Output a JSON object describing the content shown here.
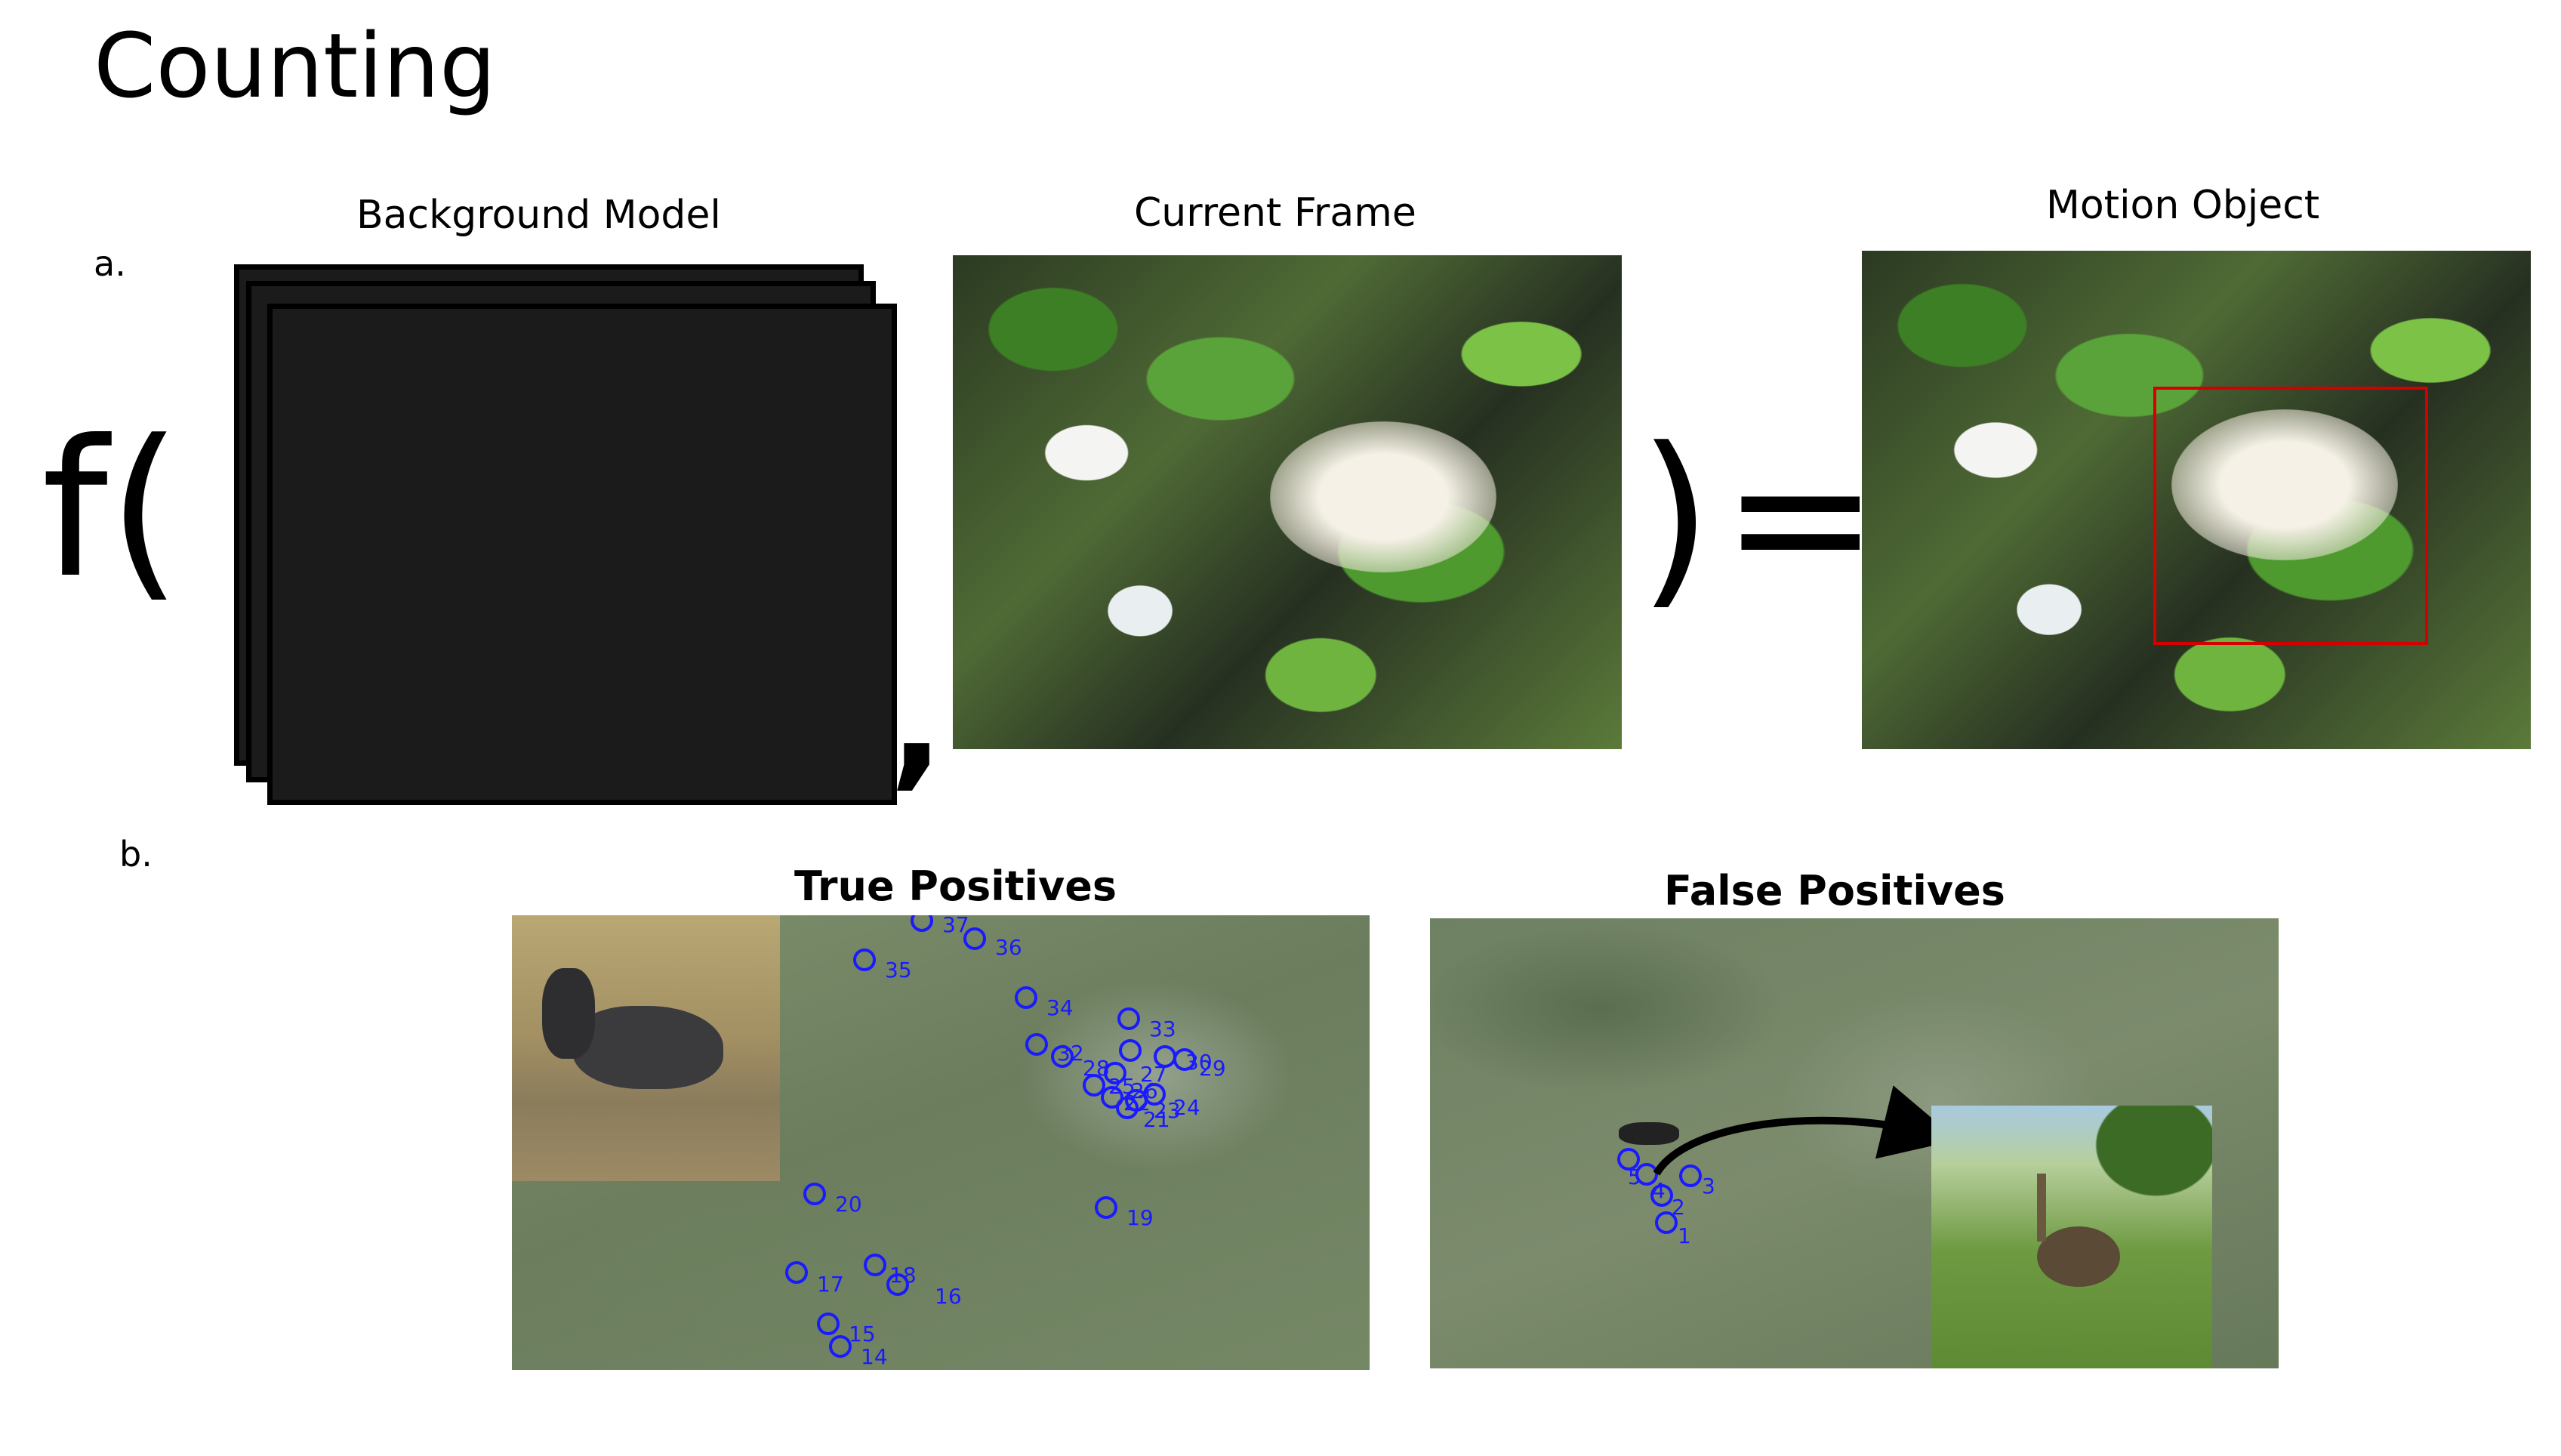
{
  "title": "Counting",
  "panel_a": {
    "label": "a.",
    "background_model_label": "Background Model",
    "current_frame_label": "Current Frame",
    "motion_object_label": "Motion Object",
    "formula_open": "f(",
    "formula_comma": ",",
    "formula_close": ")",
    "formula_equals": "="
  },
  "panel_b": {
    "label": "b.",
    "true_positives_label": "True Positives",
    "false_positives_label": "False Positives",
    "true_markers": [
      "37",
      "36",
      "35",
      "34",
      "33",
      "32",
      "30",
      "29",
      "28",
      "27",
      "26",
      "25",
      "24",
      "23",
      "22",
      "21",
      "20",
      "19",
      "18",
      "17",
      "16",
      "15",
      "14"
    ],
    "false_markers": [
      "5",
      "4",
      "3",
      "2",
      "1"
    ]
  },
  "colors": {
    "marker": "#1a1aff",
    "detection_box": "#d40000"
  }
}
